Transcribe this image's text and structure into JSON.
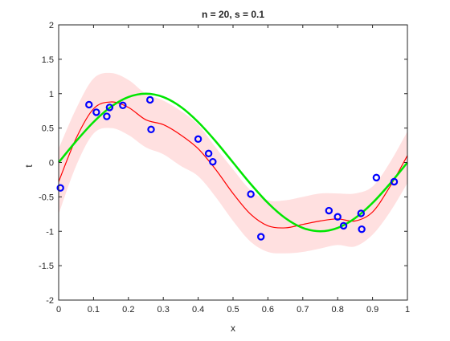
{
  "chart_data": {
    "type": "scatter",
    "title": "n = 20, s = 0.1",
    "xlabel": "x",
    "ylabel": "t",
    "xlim": [
      0,
      1
    ],
    "ylim": [
      -2,
      2
    ],
    "xticks": [
      0,
      0.1,
      0.2,
      0.3,
      0.4,
      0.5,
      0.6,
      0.7,
      0.8,
      0.9,
      1
    ],
    "xtick_labels": [
      "0",
      "0.1",
      "0.2",
      "0.3",
      "0.4",
      "0.5",
      "0.6",
      "0.7",
      "0.8",
      "0.9",
      "1"
    ],
    "yticks": [
      -2,
      -1.5,
      -1,
      -0.5,
      0,
      0.5,
      1,
      1.5,
      2
    ],
    "ytick_labels": [
      "-2",
      "-1.5",
      "-1",
      "-0.5",
      "0",
      "0.5",
      "1",
      "1.5",
      "2"
    ],
    "grid": false,
    "colors": {
      "band": "#ffe0e0",
      "prediction": "#ff0000",
      "true_function": "#00e600",
      "points": "#0000ff",
      "axes": "#262626"
    },
    "series": [
      {
        "type": "area",
        "x": [
          0,
          0.05,
          0.1,
          0.15,
          0.2,
          0.25,
          0.3,
          0.35,
          0.4,
          0.45,
          0.5,
          0.55,
          0.6,
          0.65,
          0.7,
          0.75,
          0.8,
          0.85,
          0.9,
          0.95,
          1
        ],
        "upper": [
          0.2,
          0.78,
          1.22,
          1.3,
          1.2,
          1.0,
          0.9,
          0.75,
          0.55,
          0.22,
          -0.1,
          -0.4,
          -0.55,
          -0.55,
          -0.5,
          -0.45,
          -0.45,
          -0.45,
          -0.35,
          0,
          0.45
        ],
        "lower": [
          -0.75,
          -0.05,
          0.42,
          0.5,
          0.4,
          0.22,
          0.12,
          -0.05,
          -0.2,
          -0.5,
          -0.85,
          -1.15,
          -1.3,
          -1.32,
          -1.3,
          -1.25,
          -1.2,
          -1.22,
          -1.05,
          -0.72,
          -0.3
        ]
      },
      {
        "type": "line",
        "x": [
          0,
          0.05,
          0.1,
          0.15,
          0.2,
          0.25,
          0.3,
          0.35,
          0.4,
          0.45,
          0.5,
          0.55,
          0.6,
          0.65,
          0.7,
          0.75,
          0.8,
          0.85,
          0.9,
          0.95,
          1
        ],
        "y": [
          -0.28,
          0.35,
          0.78,
          0.88,
          0.8,
          0.62,
          0.55,
          0.4,
          0.2,
          -0.1,
          -0.45,
          -0.75,
          -0.92,
          -0.95,
          -0.9,
          -0.85,
          -0.82,
          -0.85,
          -0.72,
          -0.35,
          0.1
        ]
      },
      {
        "type": "line",
        "function": "sin(2*pi*x)",
        "x": [
          0,
          0.05,
          0.1,
          0.15,
          0.2,
          0.25,
          0.3,
          0.35,
          0.4,
          0.45,
          0.5,
          0.55,
          0.6,
          0.65,
          0.7,
          0.75,
          0.8,
          0.85,
          0.9,
          0.95,
          1
        ],
        "y": [
          0,
          0.309,
          0.588,
          0.809,
          0.951,
          1,
          0.951,
          0.809,
          0.588,
          0.309,
          0,
          -0.309,
          -0.588,
          -0.809,
          -0.951,
          -1,
          -0.951,
          -0.809,
          -0.588,
          -0.309,
          0
        ]
      },
      {
        "type": "scatter",
        "x": [
          0.005,
          0.087,
          0.108,
          0.138,
          0.146,
          0.184,
          0.262,
          0.265,
          0.4,
          0.43,
          0.442,
          0.551,
          0.58,
          0.775,
          0.8,
          0.817,
          0.867,
          0.869,
          0.911,
          0.962
        ],
        "y": [
          -0.37,
          0.84,
          0.73,
          0.67,
          0.8,
          0.83,
          0.91,
          0.48,
          0.34,
          0.13,
          0.01,
          -0.46,
          -1.08,
          -0.7,
          -0.79,
          -0.92,
          -0.74,
          -0.97,
          -0.22,
          -0.28
        ]
      }
    ]
  }
}
